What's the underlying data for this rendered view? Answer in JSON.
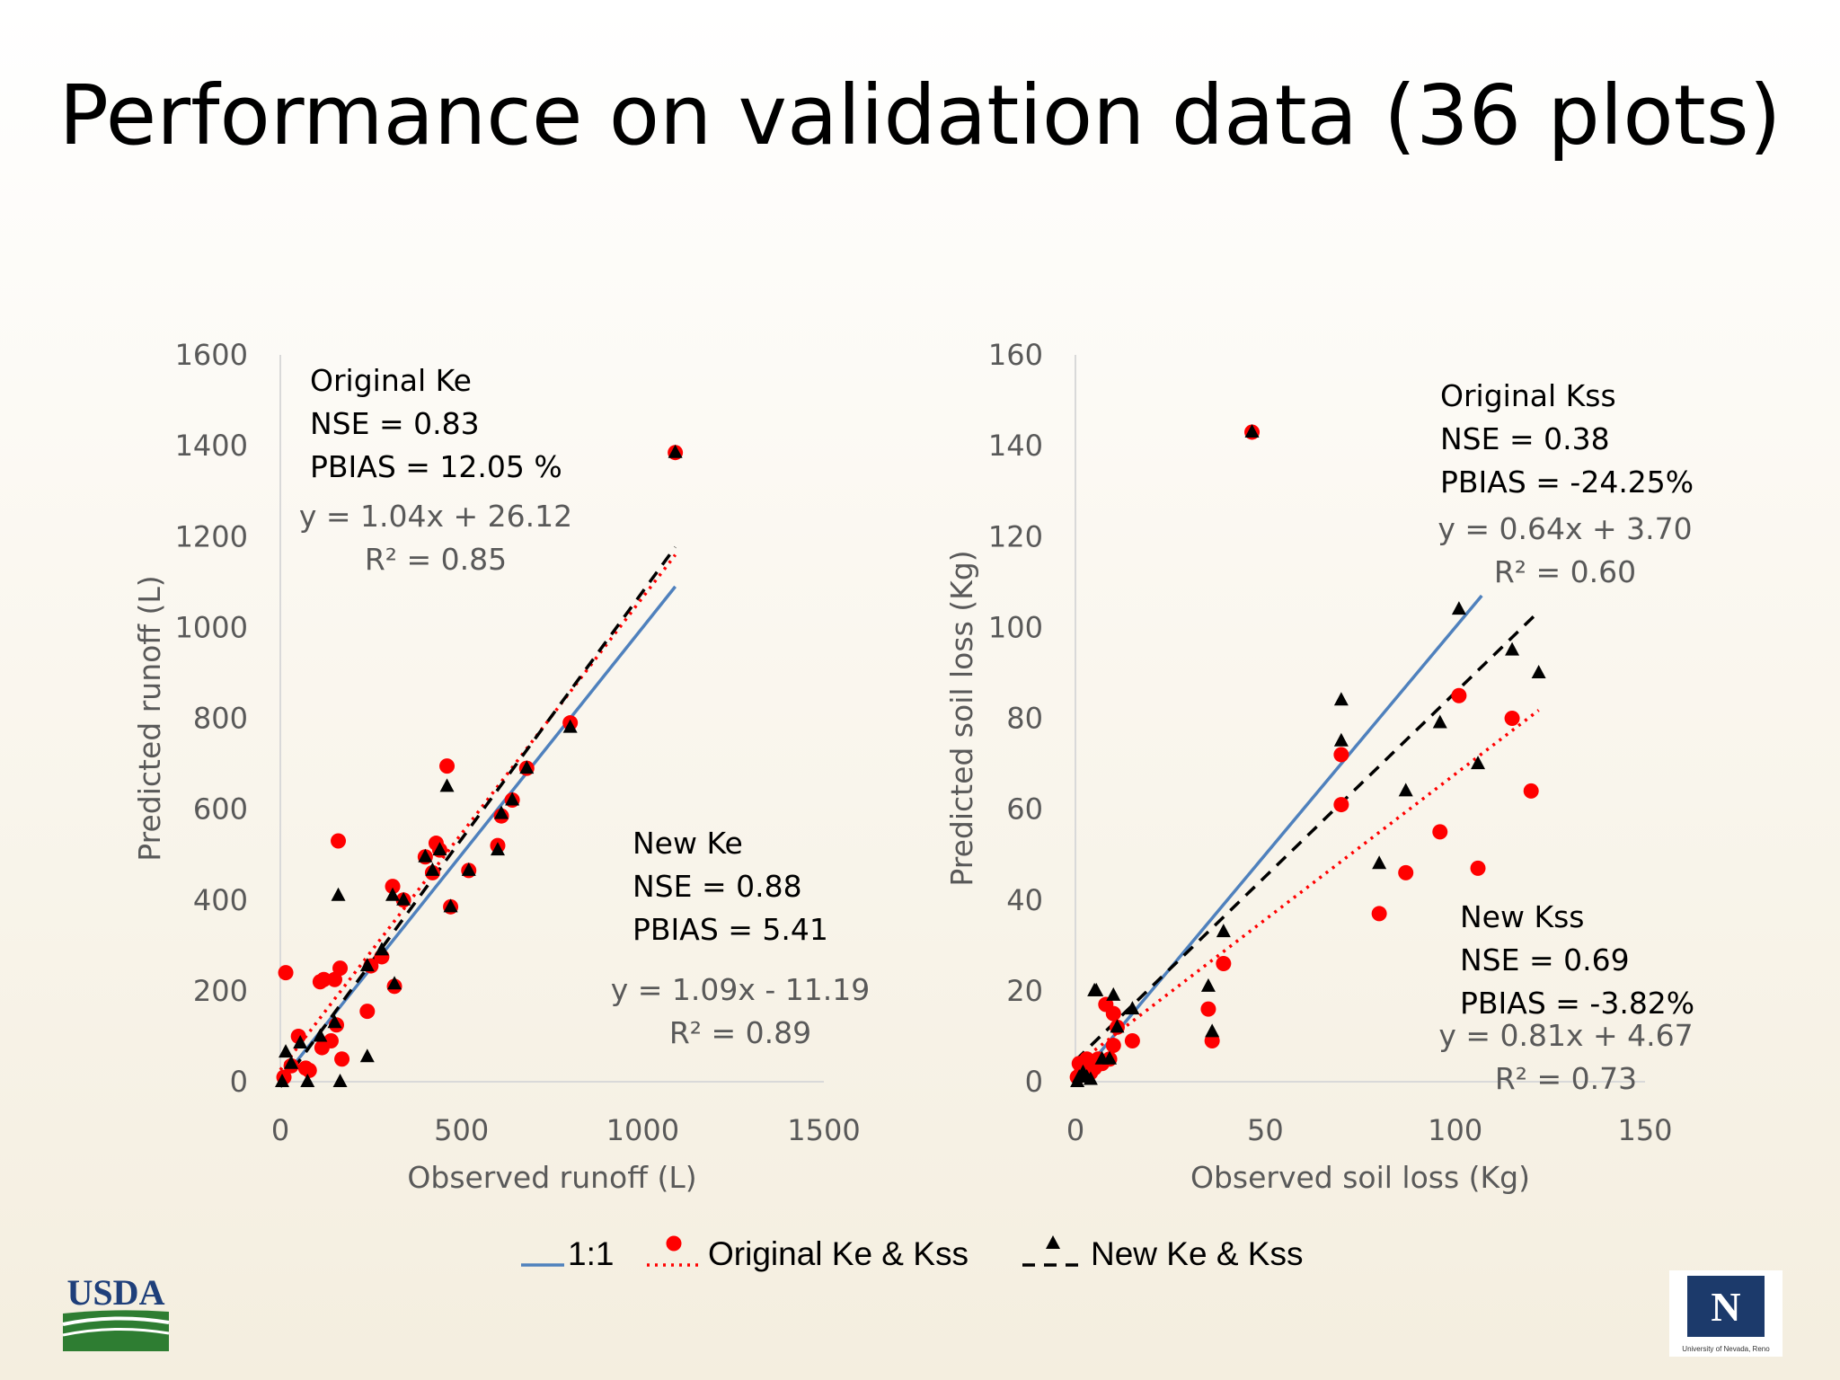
{
  "title": "Performance on validation data (36 plots)",
  "colors": {
    "one_to_one": "#4f81bd",
    "original": "#ff0000",
    "new": "#000000"
  },
  "logos": {
    "left": "USDA",
    "right": "N",
    "right_caption": "University of Nevada, Reno"
  },
  "chart_data": [
    {
      "type": "scatter",
      "xlabel": "Observed runoff (L)",
      "ylabel": "Predicted runoff (L)",
      "xlim": [
        0,
        1500
      ],
      "ylim": [
        0,
        1600
      ],
      "xticks": [
        0,
        500,
        1000,
        1500
      ],
      "yticks": [
        0,
        200,
        400,
        600,
        800,
        1000,
        1200,
        1400,
        1600
      ],
      "grid": false,
      "series": [
        {
          "name": "Original Ke & Kss",
          "marker": "circle",
          "x": [
            10,
            15,
            30,
            50,
            70,
            80,
            110,
            115,
            120,
            140,
            150,
            155,
            160,
            165,
            170,
            240,
            250,
            280,
            310,
            315,
            340,
            400,
            420,
            430,
            440,
            460,
            470,
            520,
            600,
            610,
            640,
            680,
            800,
            1090
          ],
          "y": [
            10,
            240,
            35,
            100,
            30,
            25,
            220,
            75,
            225,
            90,
            225,
            125,
            530,
            250,
            50,
            155,
            255,
            275,
            430,
            210,
            400,
            495,
            460,
            525,
            510,
            695,
            385,
            465,
            520,
            585,
            620,
            690,
            790,
            1385
          ]
        },
        {
          "name": "New Ke & Kss",
          "marker": "triangle",
          "x": [
            5,
            15,
            30,
            55,
            75,
            110,
            150,
            160,
            165,
            240,
            240,
            280,
            310,
            315,
            340,
            400,
            420,
            440,
            460,
            470,
            520,
            600,
            610,
            640,
            680,
            800,
            1090
          ],
          "y": [
            0,
            65,
            40,
            85,
            0,
            100,
            130,
            410,
            0,
            55,
            255,
            290,
            410,
            215,
            400,
            495,
            465,
            510,
            650,
            385,
            465,
            510,
            590,
            620,
            690,
            780,
            1385
          ]
        }
      ],
      "lines": [
        {
          "name": "1:1",
          "style": "solid",
          "x": [
            0,
            1090
          ],
          "y": [
            0,
            1090
          ]
        },
        {
          "name": "Original Ke & Kss",
          "style": "dotted",
          "x": [
            0,
            1090
          ],
          "y": [
            26.12,
            1159.72
          ]
        },
        {
          "name": "New Ke & Kss",
          "style": "dashed",
          "x": [
            0,
            1090
          ],
          "y": [
            -11.19,
            1176.91
          ]
        }
      ],
      "annotations": {
        "original": [
          "Original Ke",
          "NSE = 0.83",
          "PBIAS = 12.05 %"
        ],
        "original_fit": [
          "y = 1.04x + 26.12",
          "R² = 0.85"
        ],
        "new": [
          "New Ke",
          "NSE = 0.88",
          "PBIAS = 5.41"
        ],
        "new_fit": [
          "y = 1.09x - 11.19",
          "R² = 0.89"
        ]
      }
    },
    {
      "type": "scatter",
      "xlabel": "Observed soil loss (Kg)",
      "ylabel": "Predicted soil loss (Kg)",
      "xlim": [
        0,
        150
      ],
      "ylim": [
        0,
        160
      ],
      "xticks": [
        0,
        50,
        100,
        150
      ],
      "yticks": [
        0,
        20,
        40,
        60,
        80,
        100,
        120,
        140,
        160
      ],
      "grid": false,
      "series": [
        {
          "name": "Original Ke & Kss",
          "marker": "circle",
          "x": [
            0.5,
            1,
            1.5,
            2,
            3,
            4,
            5,
            6,
            7,
            8,
            9,
            10,
            10,
            11,
            15,
            35,
            36,
            39,
            46.5,
            70,
            70,
            80,
            87,
            96,
            101,
            106,
            115,
            120
          ],
          "y": [
            1,
            4,
            2,
            3,
            5,
            2,
            3,
            5,
            4,
            17,
            5,
            8,
            15,
            12,
            9,
            16,
            9,
            26,
            143,
            61,
            72,
            37,
            46,
            55,
            85,
            47,
            80,
            64
          ]
        },
        {
          "name": "New Ke & Kss",
          "marker": "triangle",
          "x": [
            0.5,
            1,
            2,
            3,
            4,
            5,
            5.5,
            7,
            9,
            10,
            11,
            15,
            35,
            36,
            39,
            46.5,
            70,
            70,
            80,
            87,
            96,
            101,
            106,
            115,
            122
          ],
          "y": [
            0,
            1,
            2,
            1,
            0.5,
            20,
            20,
            5,
            5,
            19,
            12,
            16,
            21,
            11,
            33,
            143,
            75,
            84,
            48,
            64,
            79,
            104,
            70,
            95,
            90
          ]
        }
      ],
      "lines": [
        {
          "name": "1:1",
          "style": "solid",
          "x": [
            0,
            107
          ],
          "y": [
            0,
            107
          ]
        },
        {
          "name": "Original Ke & Kss",
          "style": "dotted",
          "x": [
            0,
            122
          ],
          "y": [
            3.7,
            81.78
          ]
        },
        {
          "name": "New Ke & Kss",
          "style": "dashed",
          "x": [
            0,
            122
          ],
          "y": [
            4.67,
            103.49
          ]
        }
      ],
      "annotations": {
        "original": [
          "Original Kss",
          "NSE = 0.38",
          "PBIAS = -24.25%"
        ],
        "original_fit": [
          "y = 0.64x + 3.70",
          "R² = 0.60"
        ],
        "new": [
          "New Kss",
          "NSE = 0.69",
          "PBIAS = -3.82%"
        ],
        "new_fit": [
          "y = 0.81x + 4.67",
          "R² = 0.73"
        ]
      }
    }
  ],
  "legend": [
    {
      "label": "1:1",
      "line": "solid",
      "marker": "none"
    },
    {
      "label": "Original Ke & Kss",
      "line": "dotted",
      "marker": "circle"
    },
    {
      "label": "New Ke & Kss",
      "line": "dashed",
      "marker": "triangle"
    }
  ]
}
